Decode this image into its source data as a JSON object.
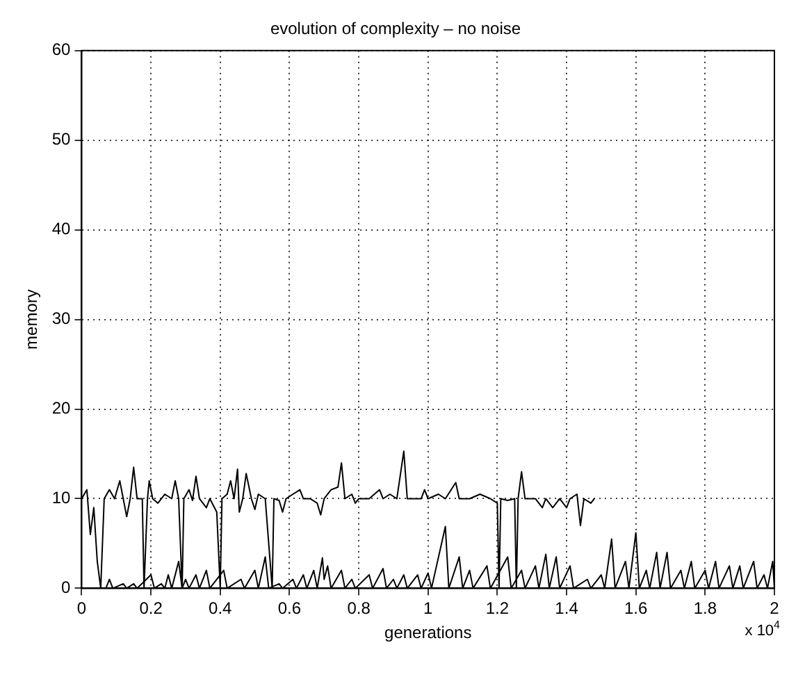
{
  "chart_data": {
    "type": "line",
    "title": "evolution of complexity – no noise",
    "xlabel": "generations",
    "ylabel": "memory",
    "annotations": [
      "x 10$^{4}$"
    ],
    "xlim": [
      0,
      2
    ],
    "ylim": [
      0,
      60
    ],
    "xticks": [
      0,
      0.2,
      0.4,
      0.6,
      0.8,
      1,
      1.2,
      1.4,
      1.6,
      1.8,
      2
    ],
    "yticks": [
      0,
      10,
      20,
      30,
      40,
      50,
      60
    ],
    "grid": true,
    "legend": false,
    "marker": "none",
    "line_style": "solid",
    "series": [
      {
        "color": "#000000",
        "x": [
          0,
          0.015,
          0.025,
          0.035,
          0.045,
          0.055,
          0.065,
          0.08,
          0.095,
          0.11,
          0.12,
          0.13,
          0.14,
          0.15,
          0.16,
          0.175,
          0.18,
          0.19,
          0.195,
          0.205,
          0.22,
          0.24,
          0.26,
          0.27,
          0.28,
          0.29,
          0.295,
          0.31,
          0.32,
          0.33,
          0.34,
          0.36,
          0.37,
          0.39,
          0.4,
          0.405,
          0.42,
          0.43,
          0.44,
          0.45,
          0.455,
          0.465,
          0.475,
          0.49,
          0.5,
          0.51,
          0.53,
          0.55,
          0.555,
          0.57,
          0.58,
          0.59,
          0.61,
          0.63,
          0.64,
          0.66,
          0.68,
          0.69,
          0.7,
          0.72,
          0.74,
          0.75,
          0.76,
          0.78,
          0.79,
          0.8,
          0.83,
          0.86,
          0.87,
          0.89,
          0.91,
          0.93,
          0.94,
          0.96,
          0.98,
          0.99,
          1,
          1.03,
          1.05,
          1.08,
          1.09,
          1.12,
          1.15,
          1.18,
          1.2,
          1.205,
          1.21,
          1.23,
          1.25,
          1.255,
          1.26,
          1.27,
          1.28,
          1.31,
          1.33,
          1.34,
          1.36,
          1.38,
          1.4,
          1.41,
          1.43,
          1.44,
          1.45,
          1.47,
          1.48
        ],
        "values": [
          10,
          11,
          6,
          9,
          3,
          0,
          10,
          11,
          10,
          12,
          10,
          8,
          10,
          13.5,
          10,
          10,
          0,
          10,
          12,
          10,
          9.5,
          10.5,
          10,
          12,
          10,
          0,
          10,
          11,
          9.8,
          12.5,
          10,
          9,
          10,
          8.5,
          0,
          10,
          10.5,
          12,
          10,
          13.3,
          8.5,
          10,
          12.8,
          10,
          8.8,
          10.5,
          10,
          0,
          10,
          9.8,
          8.5,
          10,
          10.5,
          11,
          10,
          10,
          9.5,
          8.2,
          10,
          11,
          11.3,
          14,
          10,
          10.5,
          9.5,
          10,
          10,
          11,
          10,
          10.5,
          10,
          15.3,
          10,
          10,
          10,
          11,
          10,
          10.5,
          10,
          11.8,
          10,
          10,
          10.5,
          10,
          9.5,
          0,
          10,
          9.8,
          10,
          0,
          10,
          13,
          10,
          10,
          9,
          10,
          9,
          10,
          9,
          10,
          10.5,
          7,
          10,
          9.5,
          10
        ]
      },
      {
        "color": "#000000",
        "x": [
          0.05,
          0.07,
          0.08,
          0.09,
          0.12,
          0.13,
          0.15,
          0.16,
          0.2,
          0.21,
          0.23,
          0.24,
          0.25,
          0.26,
          0.28,
          0.29,
          0.3,
          0.31,
          0.33,
          0.34,
          0.36,
          0.37,
          0.41,
          0.42,
          0.46,
          0.47,
          0.5,
          0.51,
          0.53,
          0.54,
          0.57,
          0.58,
          0.61,
          0.62,
          0.64,
          0.65,
          0.67,
          0.68,
          0.695,
          0.7,
          0.71,
          0.72,
          0.75,
          0.76,
          0.78,
          0.79,
          0.83,
          0.84,
          0.87,
          0.88,
          0.9,
          0.91,
          0.93,
          0.94,
          0.97,
          0.98,
          1,
          1.01,
          1.05,
          1.06,
          1.09,
          1.1,
          1.12,
          1.13,
          1.17,
          1.18,
          1.23,
          1.24,
          1.27,
          1.28,
          1.31,
          1.32,
          1.34,
          1.35,
          1.37,
          1.38,
          1.41,
          1.42,
          1.46,
          1.47,
          1.5,
          1.51,
          1.53,
          1.54,
          1.57,
          1.58,
          1.6,
          1.61,
          1.63,
          1.64,
          1.66,
          1.67,
          1.69,
          1.7,
          1.73,
          1.74,
          1.76,
          1.77,
          1.8,
          1.81,
          1.83,
          1.84,
          1.87,
          1.88,
          1.9,
          1.91,
          1.94,
          1.95,
          1.97,
          1.98,
          1.995,
          2
        ],
        "values": [
          0,
          0,
          1,
          0,
          0.5,
          0,
          0.5,
          0,
          1.5,
          0,
          0.5,
          0,
          1.5,
          0,
          3,
          0,
          1,
          0,
          1.5,
          0,
          2,
          0,
          2,
          0,
          1,
          0,
          2,
          0,
          3.5,
          0,
          0.5,
          0,
          1,
          0,
          1.5,
          0,
          2,
          0,
          3.4,
          1,
          2.5,
          0,
          2,
          0,
          1,
          0,
          1.5,
          0,
          2.2,
          0,
          1,
          0,
          1.5,
          0,
          1.5,
          0,
          1.7,
          0,
          6.9,
          0,
          3.5,
          0,
          2,
          0,
          2.5,
          0,
          3.5,
          0,
          2,
          0,
          2.5,
          0,
          3.8,
          0,
          3.5,
          0,
          2.5,
          0,
          1,
          0,
          1.5,
          0,
          5.5,
          0,
          3,
          0,
          6.2,
          0,
          2,
          0,
          4,
          0,
          4,
          0,
          2,
          0,
          3,
          0,
          2,
          0,
          3,
          0,
          2.5,
          0,
          2.5,
          0,
          3,
          0,
          1.5,
          0,
          3,
          0
        ]
      }
    ]
  }
}
